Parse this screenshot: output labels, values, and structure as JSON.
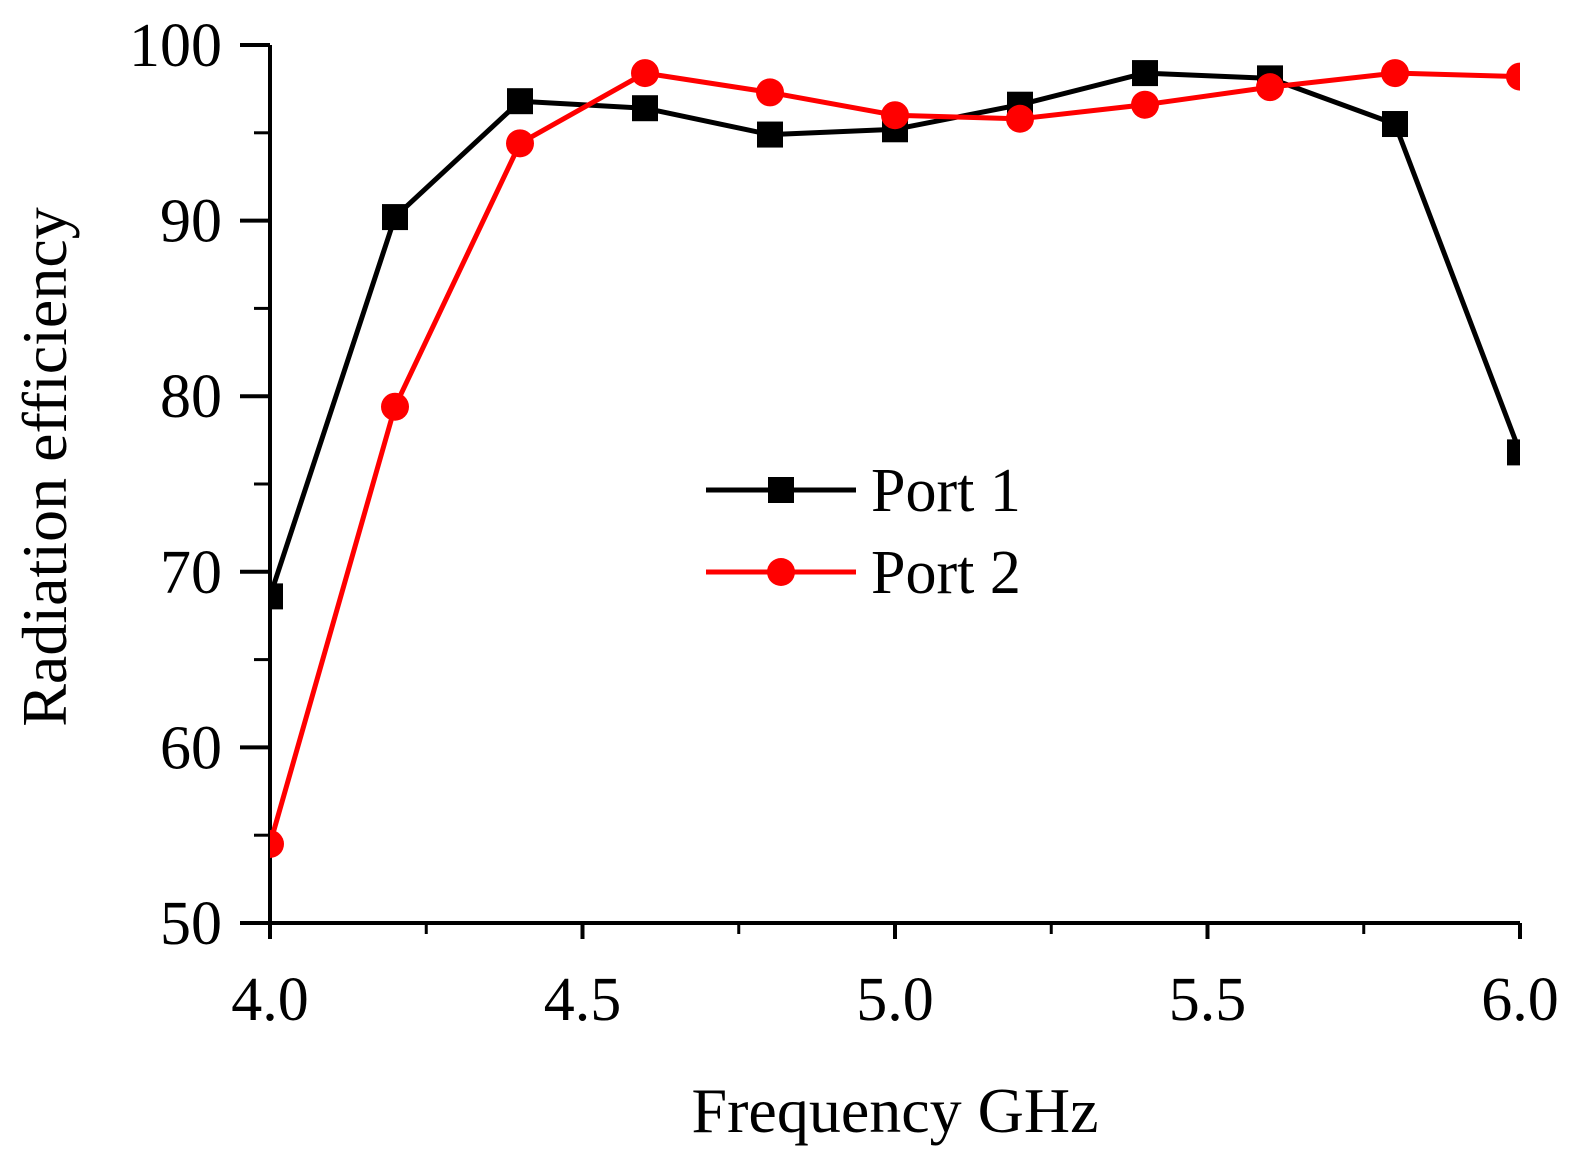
{
  "chart_data": {
    "type": "line",
    "title": "",
    "xlabel": "Frequency GHz",
    "ylabel": "Radiation efficiency",
    "xlim": [
      4.0,
      6.0
    ],
    "ylim": [
      50,
      100
    ],
    "x_major_ticks": [
      4.0,
      4.5,
      5.0,
      5.5,
      6.0
    ],
    "x_tick_labels": [
      "4.0",
      "4.5",
      "5.0",
      "5.5",
      "6.0"
    ],
    "x_minor_ticks": [
      4.25,
      4.75,
      5.25,
      5.75
    ],
    "y_major_ticks": [
      50,
      60,
      70,
      80,
      90,
      100
    ],
    "y_tick_labels": [
      "50",
      "60",
      "70",
      "80",
      "90",
      "100"
    ],
    "y_minor_ticks": [
      55,
      65,
      75,
      85,
      95
    ],
    "grid": false,
    "legend_position": "center",
    "series": [
      {
        "name": "Port 1",
        "color": "#000000",
        "marker": "square",
        "x": [
          4.0,
          4.2,
          4.4,
          4.6,
          4.8,
          5.0,
          5.2,
          5.4,
          5.6,
          5.8,
          6.0
        ],
        "values": [
          68.6,
          90.2,
          96.8,
          96.4,
          94.9,
          95.2,
          96.6,
          98.4,
          98.1,
          95.5,
          76.8
        ]
      },
      {
        "name": "Port 2",
        "color": "#ff0000",
        "marker": "circle",
        "x": [
          4.0,
          4.2,
          4.4,
          4.6,
          4.8,
          5.0,
          5.2,
          5.4,
          5.6,
          5.8,
          6.0
        ],
        "values": [
          54.5,
          79.4,
          94.4,
          98.4,
          97.3,
          96.0,
          95.8,
          96.6,
          97.6,
          98.4,
          98.2
        ]
      }
    ]
  }
}
